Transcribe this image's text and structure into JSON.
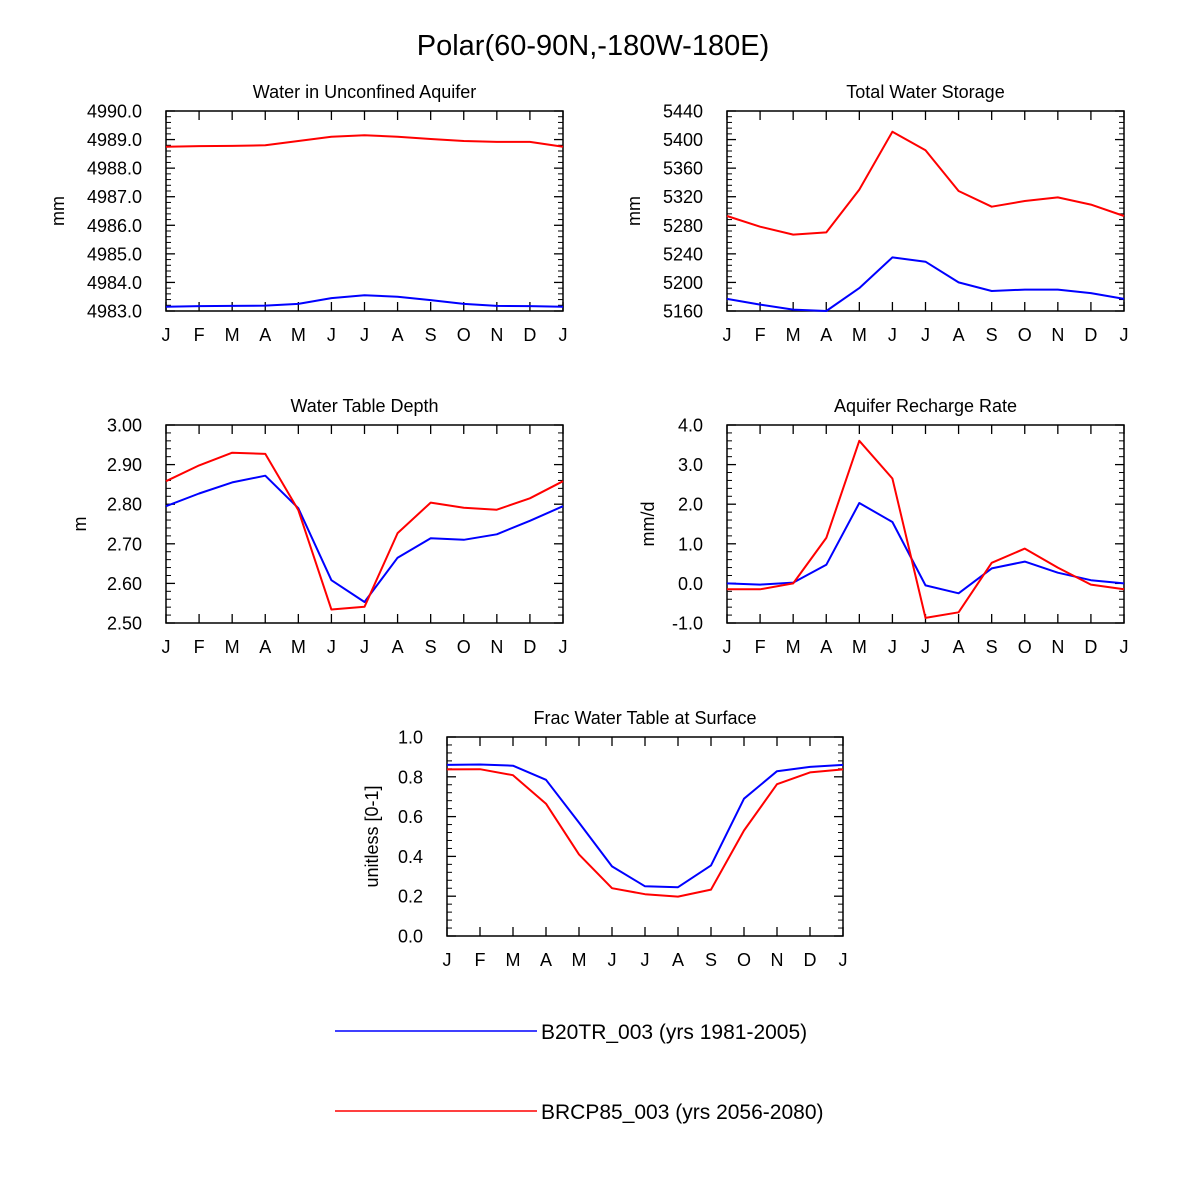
{
  "main_title": "Polar(60-90N,-180W-180E)",
  "colors": {
    "series1": "#0000ff",
    "series2": "#ff0000",
    "axis": "#000000"
  },
  "legend": {
    "entries": [
      {
        "label": "B20TR_003 (yrs 1981-2005)",
        "color": "#0000ff"
      },
      {
        "label": "BRCP85_003 (yrs 2056-2080)",
        "color": "#ff0000"
      }
    ]
  },
  "chart_data": [
    {
      "type": "line",
      "title": "Water in Unconfined Aquifer",
      "xlabel": "",
      "ylabel": "mm",
      "categories": [
        "J",
        "F",
        "M",
        "A",
        "M",
        "J",
        "J",
        "A",
        "S",
        "O",
        "N",
        "D",
        "J"
      ],
      "ylim": [
        4983.0,
        4990.0
      ],
      "yticks": [
        "4983.0",
        "4984.0",
        "4985.0",
        "4986.0",
        "4987.0",
        "4988.0",
        "4989.0",
        "4990.0"
      ],
      "series": [
        {
          "name": "B20TR_003 (yrs 1981-2005)",
          "color": "#0000ff",
          "values": [
            4983.15,
            4983.17,
            4983.18,
            4983.19,
            4983.25,
            4983.45,
            4983.55,
            4983.5,
            4983.38,
            4983.25,
            4983.18,
            4983.17,
            4983.15
          ]
        },
        {
          "name": "BRCP85_003 (yrs 2056-2080)",
          "color": "#ff0000",
          "values": [
            4988.75,
            4988.77,
            4988.78,
            4988.8,
            4988.95,
            4989.1,
            4989.15,
            4989.1,
            4989.02,
            4988.95,
            4988.92,
            4988.92,
            4988.75
          ]
        }
      ]
    },
    {
      "type": "line",
      "title": "Total Water Storage",
      "xlabel": "",
      "ylabel": "mm",
      "categories": [
        "J",
        "F",
        "M",
        "A",
        "M",
        "J",
        "J",
        "A",
        "S",
        "O",
        "N",
        "D",
        "J"
      ],
      "ylim": [
        5160,
        5440
      ],
      "yticks": [
        "5160",
        "5200",
        "5240",
        "5280",
        "5320",
        "5360",
        "5400",
        "5440"
      ],
      "series": [
        {
          "name": "B20TR_003 (yrs 1981-2005)",
          "color": "#0000ff",
          "values": [
            5177,
            5169,
            5162,
            5160,
            5192,
            5235,
            5229,
            5200,
            5188,
            5190,
            5190,
            5185,
            5177
          ]
        },
        {
          "name": "BRCP85_003 (yrs 2056-2080)",
          "color": "#ff0000",
          "values": [
            5293,
            5278,
            5267,
            5270,
            5330,
            5411,
            5385,
            5328,
            5306,
            5314,
            5319,
            5309,
            5293
          ]
        }
      ]
    },
    {
      "type": "line",
      "title": "Water Table Depth",
      "xlabel": "",
      "ylabel": "m",
      "categories": [
        "J",
        "F",
        "M",
        "A",
        "M",
        "J",
        "J",
        "A",
        "S",
        "O",
        "N",
        "D",
        "J"
      ],
      "ylim": [
        2.5,
        3.0
      ],
      "yticks": [
        "2.50",
        "2.60",
        "2.70",
        "2.80",
        "2.90",
        "3.00"
      ],
      "series": [
        {
          "name": "B20TR_003 (yrs 1981-2005)",
          "color": "#0000ff",
          "values": [
            2.795,
            2.827,
            2.855,
            2.872,
            2.79,
            2.608,
            2.553,
            2.665,
            2.714,
            2.71,
            2.724,
            2.758,
            2.795
          ]
        },
        {
          "name": "BRCP85_003 (yrs 2056-2080)",
          "color": "#ff0000",
          "values": [
            2.858,
            2.898,
            2.93,
            2.927,
            2.785,
            2.534,
            2.541,
            2.727,
            2.804,
            2.791,
            2.786,
            2.815,
            2.858
          ]
        }
      ]
    },
    {
      "type": "line",
      "title": "Aquifer Recharge Rate",
      "xlabel": "",
      "ylabel": "mm/d",
      "categories": [
        "J",
        "F",
        "M",
        "A",
        "M",
        "J",
        "J",
        "A",
        "S",
        "O",
        "N",
        "D",
        "J"
      ],
      "ylim": [
        -1.0,
        4.0
      ],
      "yticks": [
        "-1.0",
        "0.0",
        "1.0",
        "2.0",
        "3.0",
        "4.0"
      ],
      "series": [
        {
          "name": "B20TR_003 (yrs 1981-2005)",
          "color": "#0000ff",
          "values": [
            0.0,
            -0.03,
            0.02,
            0.47,
            2.03,
            1.55,
            -0.05,
            -0.25,
            0.38,
            0.55,
            0.27,
            0.08,
            0.0
          ]
        },
        {
          "name": "BRCP85_003 (yrs 2056-2080)",
          "color": "#ff0000",
          "values": [
            -0.15,
            -0.15,
            0.0,
            1.15,
            3.6,
            2.65,
            -0.87,
            -0.73,
            0.52,
            0.88,
            0.4,
            -0.03,
            -0.15
          ]
        }
      ]
    },
    {
      "type": "line",
      "title": "Frac Water Table at Surface",
      "xlabel": "",
      "ylabel": "unitless [0-1]",
      "categories": [
        "J",
        "F",
        "M",
        "A",
        "M",
        "J",
        "J",
        "A",
        "S",
        "O",
        "N",
        "D",
        "J"
      ],
      "ylim": [
        0.0,
        1.0
      ],
      "yticks": [
        "0.0",
        "0.2",
        "0.4",
        "0.6",
        "0.8",
        "1.0"
      ],
      "series": [
        {
          "name": "B20TR_003 (yrs 1981-2005)",
          "color": "#0000ff",
          "values": [
            0.86,
            0.862,
            0.856,
            0.785,
            0.57,
            0.35,
            0.25,
            0.245,
            0.355,
            0.69,
            0.828,
            0.85,
            0.86
          ]
        },
        {
          "name": "BRCP85_003 (yrs 2056-2080)",
          "color": "#ff0000",
          "values": [
            0.837,
            0.838,
            0.808,
            0.665,
            0.41,
            0.24,
            0.21,
            0.198,
            0.233,
            0.53,
            0.763,
            0.822,
            0.837
          ]
        }
      ]
    }
  ]
}
